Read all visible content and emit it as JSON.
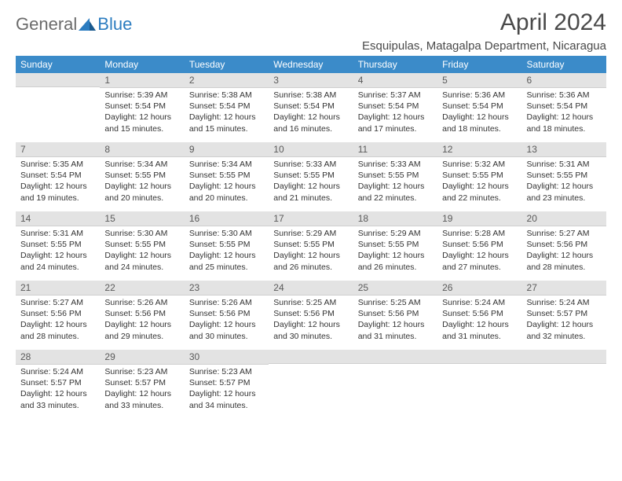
{
  "logo": {
    "general": "General",
    "blue": "Blue"
  },
  "title": "April 2024",
  "location": "Esquipulas, Matagalpa Department, Nicaragua",
  "colors": {
    "header_bg": "#3b8bc9",
    "header_text": "#ffffff",
    "daynum_bg": "#e3e3e3",
    "text": "#333333",
    "logo_gray": "#6b6b6b",
    "logo_blue": "#2b7cc0"
  },
  "day_headers": [
    "Sunday",
    "Monday",
    "Tuesday",
    "Wednesday",
    "Thursday",
    "Friday",
    "Saturday"
  ],
  "weeks": [
    [
      {
        "n": "",
        "lines": []
      },
      {
        "n": "1",
        "lines": [
          "Sunrise: 5:39 AM",
          "Sunset: 5:54 PM",
          "Daylight: 12 hours and 15 minutes."
        ]
      },
      {
        "n": "2",
        "lines": [
          "Sunrise: 5:38 AM",
          "Sunset: 5:54 PM",
          "Daylight: 12 hours and 15 minutes."
        ]
      },
      {
        "n": "3",
        "lines": [
          "Sunrise: 5:38 AM",
          "Sunset: 5:54 PM",
          "Daylight: 12 hours and 16 minutes."
        ]
      },
      {
        "n": "4",
        "lines": [
          "Sunrise: 5:37 AM",
          "Sunset: 5:54 PM",
          "Daylight: 12 hours and 17 minutes."
        ]
      },
      {
        "n": "5",
        "lines": [
          "Sunrise: 5:36 AM",
          "Sunset: 5:54 PM",
          "Daylight: 12 hours and 18 minutes."
        ]
      },
      {
        "n": "6",
        "lines": [
          "Sunrise: 5:36 AM",
          "Sunset: 5:54 PM",
          "Daylight: 12 hours and 18 minutes."
        ]
      }
    ],
    [
      {
        "n": "7",
        "lines": [
          "Sunrise: 5:35 AM",
          "Sunset: 5:54 PM",
          "Daylight: 12 hours and 19 minutes."
        ]
      },
      {
        "n": "8",
        "lines": [
          "Sunrise: 5:34 AM",
          "Sunset: 5:55 PM",
          "Daylight: 12 hours and 20 minutes."
        ]
      },
      {
        "n": "9",
        "lines": [
          "Sunrise: 5:34 AM",
          "Sunset: 5:55 PM",
          "Daylight: 12 hours and 20 minutes."
        ]
      },
      {
        "n": "10",
        "lines": [
          "Sunrise: 5:33 AM",
          "Sunset: 5:55 PM",
          "Daylight: 12 hours and 21 minutes."
        ]
      },
      {
        "n": "11",
        "lines": [
          "Sunrise: 5:33 AM",
          "Sunset: 5:55 PM",
          "Daylight: 12 hours and 22 minutes."
        ]
      },
      {
        "n": "12",
        "lines": [
          "Sunrise: 5:32 AM",
          "Sunset: 5:55 PM",
          "Daylight: 12 hours and 22 minutes."
        ]
      },
      {
        "n": "13",
        "lines": [
          "Sunrise: 5:31 AM",
          "Sunset: 5:55 PM",
          "Daylight: 12 hours and 23 minutes."
        ]
      }
    ],
    [
      {
        "n": "14",
        "lines": [
          "Sunrise: 5:31 AM",
          "Sunset: 5:55 PM",
          "Daylight: 12 hours and 24 minutes."
        ]
      },
      {
        "n": "15",
        "lines": [
          "Sunrise: 5:30 AM",
          "Sunset: 5:55 PM",
          "Daylight: 12 hours and 24 minutes."
        ]
      },
      {
        "n": "16",
        "lines": [
          "Sunrise: 5:30 AM",
          "Sunset: 5:55 PM",
          "Daylight: 12 hours and 25 minutes."
        ]
      },
      {
        "n": "17",
        "lines": [
          "Sunrise: 5:29 AM",
          "Sunset: 5:55 PM",
          "Daylight: 12 hours and 26 minutes."
        ]
      },
      {
        "n": "18",
        "lines": [
          "Sunrise: 5:29 AM",
          "Sunset: 5:55 PM",
          "Daylight: 12 hours and 26 minutes."
        ]
      },
      {
        "n": "19",
        "lines": [
          "Sunrise: 5:28 AM",
          "Sunset: 5:56 PM",
          "Daylight: 12 hours and 27 minutes."
        ]
      },
      {
        "n": "20",
        "lines": [
          "Sunrise: 5:27 AM",
          "Sunset: 5:56 PM",
          "Daylight: 12 hours and 28 minutes."
        ]
      }
    ],
    [
      {
        "n": "21",
        "lines": [
          "Sunrise: 5:27 AM",
          "Sunset: 5:56 PM",
          "Daylight: 12 hours and 28 minutes."
        ]
      },
      {
        "n": "22",
        "lines": [
          "Sunrise: 5:26 AM",
          "Sunset: 5:56 PM",
          "Daylight: 12 hours and 29 minutes."
        ]
      },
      {
        "n": "23",
        "lines": [
          "Sunrise: 5:26 AM",
          "Sunset: 5:56 PM",
          "Daylight: 12 hours and 30 minutes."
        ]
      },
      {
        "n": "24",
        "lines": [
          "Sunrise: 5:25 AM",
          "Sunset: 5:56 PM",
          "Daylight: 12 hours and 30 minutes."
        ]
      },
      {
        "n": "25",
        "lines": [
          "Sunrise: 5:25 AM",
          "Sunset: 5:56 PM",
          "Daylight: 12 hours and 31 minutes."
        ]
      },
      {
        "n": "26",
        "lines": [
          "Sunrise: 5:24 AM",
          "Sunset: 5:56 PM",
          "Daylight: 12 hours and 31 minutes."
        ]
      },
      {
        "n": "27",
        "lines": [
          "Sunrise: 5:24 AM",
          "Sunset: 5:57 PM",
          "Daylight: 12 hours and 32 minutes."
        ]
      }
    ],
    [
      {
        "n": "28",
        "lines": [
          "Sunrise: 5:24 AM",
          "Sunset: 5:57 PM",
          "Daylight: 12 hours and 33 minutes."
        ]
      },
      {
        "n": "29",
        "lines": [
          "Sunrise: 5:23 AM",
          "Sunset: 5:57 PM",
          "Daylight: 12 hours and 33 minutes."
        ]
      },
      {
        "n": "30",
        "lines": [
          "Sunrise: 5:23 AM",
          "Sunset: 5:57 PM",
          "Daylight: 12 hours and 34 minutes."
        ]
      },
      {
        "n": "",
        "lines": []
      },
      {
        "n": "",
        "lines": []
      },
      {
        "n": "",
        "lines": []
      },
      {
        "n": "",
        "lines": []
      }
    ]
  ]
}
